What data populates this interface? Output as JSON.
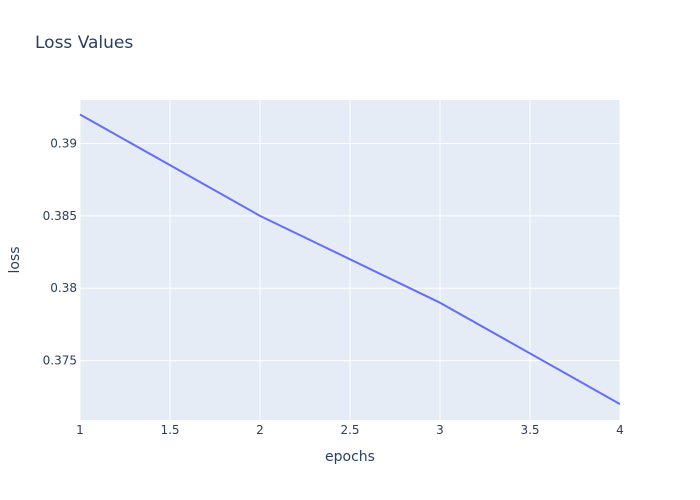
{
  "chart_data": {
    "type": "line",
    "title": "Loss Values",
    "xlabel": "epochs",
    "ylabel": "loss",
    "x": [
      1,
      2,
      3,
      4
    ],
    "series": [
      {
        "values": [
          0.392,
          0.385,
          0.379,
          0.372
        ]
      }
    ],
    "xlim": [
      1,
      4
    ],
    "ylim": [
      0.3709,
      0.393
    ],
    "x_ticks": [
      1,
      1.5,
      2,
      2.5,
      3,
      3.5,
      4
    ],
    "x_tick_labels": [
      "1",
      "1.5",
      "2",
      "2.5",
      "3",
      "3.5",
      "4"
    ],
    "y_ticks": [
      0.375,
      0.38,
      0.385,
      0.39
    ],
    "y_tick_labels": [
      "0.375",
      "0.38",
      "0.385",
      "0.39"
    ],
    "grid": true,
    "colors": {
      "line": "#636efa",
      "plot_background": "#e5ecf6",
      "grid": "#ffffff",
      "text": "#2a3f5f"
    }
  }
}
